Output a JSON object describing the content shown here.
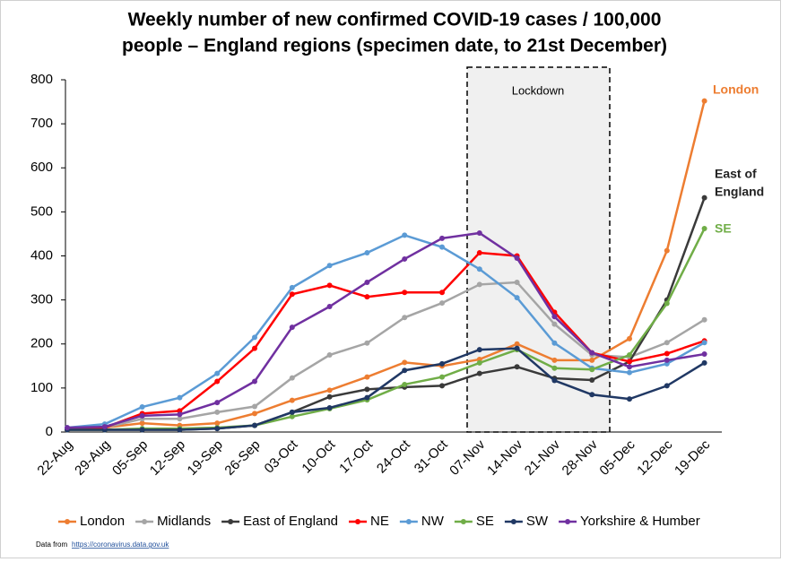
{
  "chart_data": {
    "type": "line",
    "title": [
      "Weekly number of new confirmed COVID-19 cases / 100,000",
      "people – England regions (specimen date, to 21st December)"
    ],
    "categories": [
      "22-Aug",
      "29-Aug",
      "05-Sep",
      "12-Sep",
      "19-Sep",
      "26-Sep",
      "03-Oct",
      "10-Oct",
      "17-Oct",
      "24-Oct",
      "31-Oct",
      "07-Nov",
      "14-Nov",
      "21-Nov",
      "28-Nov",
      "05-Dec",
      "12-Dec",
      "19-Dec"
    ],
    "series": [
      {
        "name": "London",
        "color": "#ed7d31",
        "values": [
          8,
          10,
          20,
          15,
          20,
          42,
          72,
          95,
          125,
          158,
          150,
          165,
          200,
          163,
          163,
          212,
          412,
          752
        ]
      },
      {
        "name": "Midlands",
        "color": "#a5a5a5",
        "values": [
          5,
          10,
          30,
          30,
          45,
          58,
          123,
          175,
          202,
          260,
          293,
          335,
          340,
          245,
          175,
          170,
          203,
          255
        ]
      },
      {
        "name": "East of England",
        "color": "#3a3a3a",
        "values": [
          5,
          5,
          5,
          5,
          8,
          15,
          45,
          80,
          97,
          102,
          105,
          133,
          148,
          122,
          118,
          160,
          300,
          532
        ]
      },
      {
        "name": "NE",
        "color": "#ff0000",
        "values": [
          5,
          10,
          42,
          48,
          115,
          190,
          313,
          333,
          307,
          317,
          317,
          407,
          400,
          272,
          180,
          160,
          178,
          207
        ]
      },
      {
        "name": "NW",
        "color": "#5b9bd5",
        "values": [
          10,
          18,
          57,
          78,
          133,
          215,
          328,
          378,
          407,
          447,
          420,
          370,
          305,
          202,
          145,
          135,
          155,
          203
        ]
      },
      {
        "name": "SE",
        "color": "#70ad47",
        "values": [
          5,
          5,
          8,
          8,
          10,
          15,
          35,
          53,
          73,
          108,
          125,
          157,
          187,
          145,
          142,
          175,
          292,
          462
        ]
      },
      {
        "name": "SW",
        "color": "#203864",
        "values": [
          5,
          5,
          5,
          5,
          8,
          15,
          45,
          55,
          78,
          140,
          155,
          187,
          190,
          117,
          85,
          75,
          105,
          157
        ]
      },
      {
        "name": "Yorkshire & Humber",
        "color": "#7030a0",
        "values": [
          10,
          12,
          37,
          40,
          67,
          115,
          238,
          285,
          340,
          393,
          440,
          452,
          395,
          262,
          180,
          148,
          163,
          177
        ]
      }
    ],
    "ylim": [
      0,
      800
    ],
    "yticks": [
      0,
      100,
      200,
      300,
      400,
      500,
      600,
      700,
      800
    ],
    "grid": false,
    "annotations": {
      "lockdown": "Lockdown",
      "london": "London",
      "east": [
        "East of",
        "England"
      ],
      "se": "SE"
    },
    "source": {
      "prefix": "Data from",
      "url": "https://coronavirus.data.gov.uk"
    }
  }
}
